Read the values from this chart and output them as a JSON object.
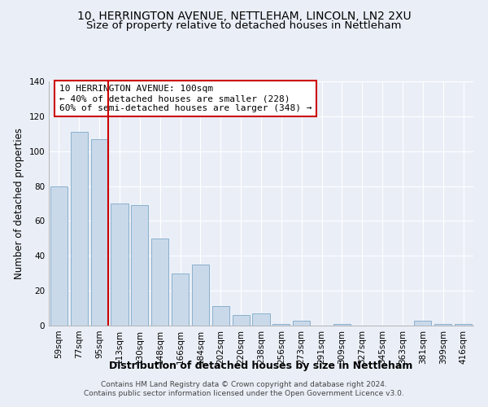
{
  "title": "10, HERRINGTON AVENUE, NETTLEHAM, LINCOLN, LN2 2XU",
  "subtitle": "Size of property relative to detached houses in Nettleham",
  "xlabel": "Distribution of detached houses by size in Nettleham",
  "ylabel": "Number of detached properties",
  "bar_labels": [
    "59sqm",
    "77sqm",
    "95sqm",
    "113sqm",
    "130sqm",
    "148sqm",
    "166sqm",
    "184sqm",
    "202sqm",
    "220sqm",
    "238sqm",
    "256sqm",
    "273sqm",
    "291sqm",
    "309sqm",
    "327sqm",
    "345sqm",
    "363sqm",
    "381sqm",
    "399sqm",
    "416sqm"
  ],
  "bar_values": [
    80,
    111,
    107,
    70,
    69,
    50,
    30,
    35,
    11,
    6,
    7,
    1,
    3,
    0,
    1,
    0,
    0,
    0,
    3,
    1,
    1
  ],
  "bar_color": "#c9d9ea",
  "bar_edge_color": "#8ab0cc",
  "background_color": "#eaeff7",
  "grid_color": "#ffffff",
  "vline_x_index": 2,
  "vline_color": "#cc0000",
  "ylim": [
    0,
    140
  ],
  "yticks": [
    0,
    20,
    40,
    60,
    80,
    100,
    120,
    140
  ],
  "annotation_title": "10 HERRINGTON AVENUE: 100sqm",
  "annotation_line1": "← 40% of detached houses are smaller (228)",
  "annotation_line2": "60% of semi-detached houses are larger (348) →",
  "annotation_box_color": "#ffffff",
  "annotation_box_edge": "#cc0000",
  "footer_line1": "Contains HM Land Registry data © Crown copyright and database right 2024.",
  "footer_line2": "Contains public sector information licensed under the Open Government Licence v3.0.",
  "title_fontsize": 10,
  "subtitle_fontsize": 9.5,
  "xlabel_fontsize": 9,
  "ylabel_fontsize": 8.5,
  "tick_fontsize": 7.5,
  "annotation_fontsize": 8,
  "footer_fontsize": 6.5
}
